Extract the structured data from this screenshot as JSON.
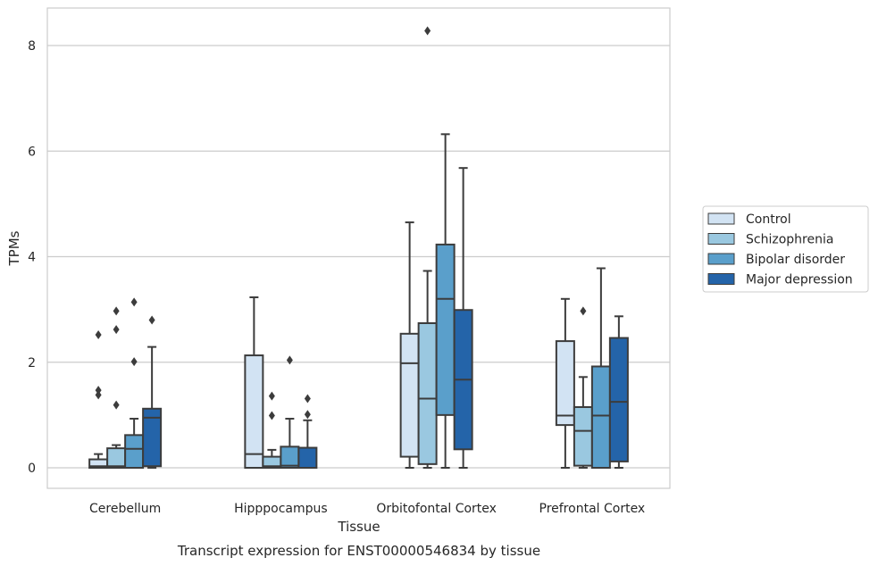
{
  "chart_data": {
    "type": "box",
    "title": "",
    "caption": "Transcript expression for ENST00000546834 by tissue",
    "xlabel": "Tissue",
    "ylabel": "TPMs",
    "ylim": [
      -0.4,
      8.7
    ],
    "yticks": [
      0,
      2,
      4,
      6,
      8
    ],
    "grid": "horizontal",
    "legend": "right",
    "categories": [
      "Cerebellum",
      "Hipppocampus",
      "Orbitofontal Cortex",
      "Prefrontal Cortex"
    ],
    "series": [
      {
        "name": "Control",
        "color": "#d2e3f3",
        "boxes": [
          {
            "whislo": 0.0,
            "q1": 0.0,
            "med": 0.03,
            "q3": 0.16,
            "whishi": 0.26,
            "fliers": [
              1.38,
              1.47,
              2.52
            ]
          },
          {
            "whislo": 0.0,
            "q1": 0.0,
            "med": 0.26,
            "q3": 2.13,
            "whishi": 3.23,
            "fliers": []
          },
          {
            "whislo": 0.0,
            "q1": 0.21,
            "med": 1.98,
            "q3": 2.54,
            "whishi": 4.65,
            "fliers": []
          },
          {
            "whislo": 0.0,
            "q1": 0.81,
            "med": 0.99,
            "q3": 2.4,
            "whishi": 3.2,
            "fliers": []
          }
        ]
      },
      {
        "name": "Schizophrenia",
        "color": "#9ac8e0",
        "boxes": [
          {
            "whislo": 0.0,
            "q1": 0.0,
            "med": 0.03,
            "q3": 0.37,
            "whishi": 0.43,
            "fliers": [
              1.19,
              2.62,
              2.97
            ]
          },
          {
            "whislo": 0.0,
            "q1": 0.0,
            "med": 0.03,
            "q3": 0.21,
            "whishi": 0.34,
            "fliers": [
              0.99,
              1.36
            ]
          },
          {
            "whislo": 0.0,
            "q1": 0.07,
            "med": 1.31,
            "q3": 2.74,
            "whishi": 3.73,
            "fliers": [
              8.28
            ]
          },
          {
            "whislo": 0.0,
            "q1": 0.04,
            "med": 0.7,
            "q3": 1.15,
            "whishi": 1.72,
            "fliers": [
              2.97
            ]
          }
        ]
      },
      {
        "name": "Bipolar disorder",
        "color": "#5a9fcb",
        "boxes": [
          {
            "whislo": 0.0,
            "q1": 0.0,
            "med": 0.36,
            "q3": 0.62,
            "whishi": 0.93,
            "fliers": [
              2.01,
              3.14
            ]
          },
          {
            "whislo": 0.0,
            "q1": 0.0,
            "med": 0.04,
            "q3": 0.4,
            "whishi": 0.93,
            "fliers": [
              2.04
            ]
          },
          {
            "whislo": 0.0,
            "q1": 1.0,
            "med": 3.2,
            "q3": 4.23,
            "whishi": 6.32,
            "fliers": []
          },
          {
            "whislo": 0.0,
            "q1": 0.0,
            "med": 0.99,
            "q3": 1.92,
            "whishi": 3.78,
            "fliers": []
          }
        ]
      },
      {
        "name": "Major depression",
        "color": "#2464a9",
        "boxes": [
          {
            "whislo": 0.0,
            "q1": 0.03,
            "med": 0.95,
            "q3": 1.12,
            "whishi": 2.29,
            "fliers": [
              2.8
            ]
          },
          {
            "whislo": 0.0,
            "q1": 0.0,
            "med": 0.0,
            "q3": 0.38,
            "whishi": 0.9,
            "fliers": [
              1.01,
              1.31
            ]
          },
          {
            "whislo": 0.0,
            "q1": 0.35,
            "med": 1.67,
            "q3": 2.99,
            "whishi": 5.68,
            "fliers": []
          },
          {
            "whislo": 0.0,
            "q1": 0.12,
            "med": 1.25,
            "q3": 2.46,
            "whishi": 2.87,
            "fliers": []
          }
        ]
      }
    ]
  }
}
